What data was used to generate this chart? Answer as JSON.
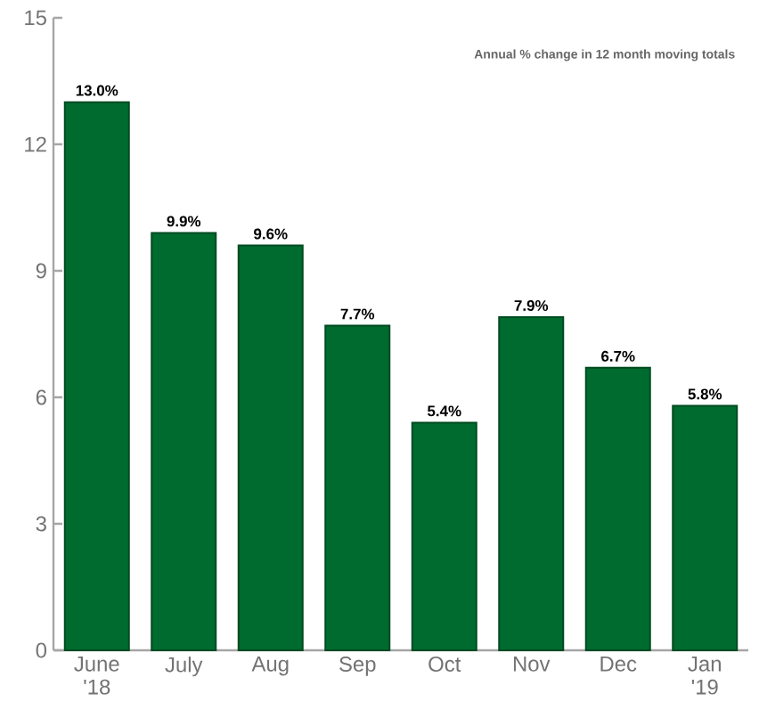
{
  "chart_data": {
    "type": "bar",
    "categories": [
      "June '18",
      "July",
      "Aug",
      "Sep",
      "Oct",
      "Nov",
      "Dec",
      "Jan '19"
    ],
    "values": [
      13.0,
      9.9,
      9.6,
      7.7,
      5.4,
      7.9,
      6.7,
      5.8
    ],
    "color": "#006b2f",
    "value_labels": [
      "13.0%",
      "9.9%",
      "9.6%",
      "7.7%",
      "5.4%",
      "7.9%",
      "6.7%",
      "5.8%"
    ],
    "ylim": [
      0,
      15
    ],
    "yticks": [
      0,
      3,
      6,
      9,
      12,
      15
    ],
    "grid": false,
    "annotations": [
      "Annual % change in 12 month moving totals"
    ]
  }
}
